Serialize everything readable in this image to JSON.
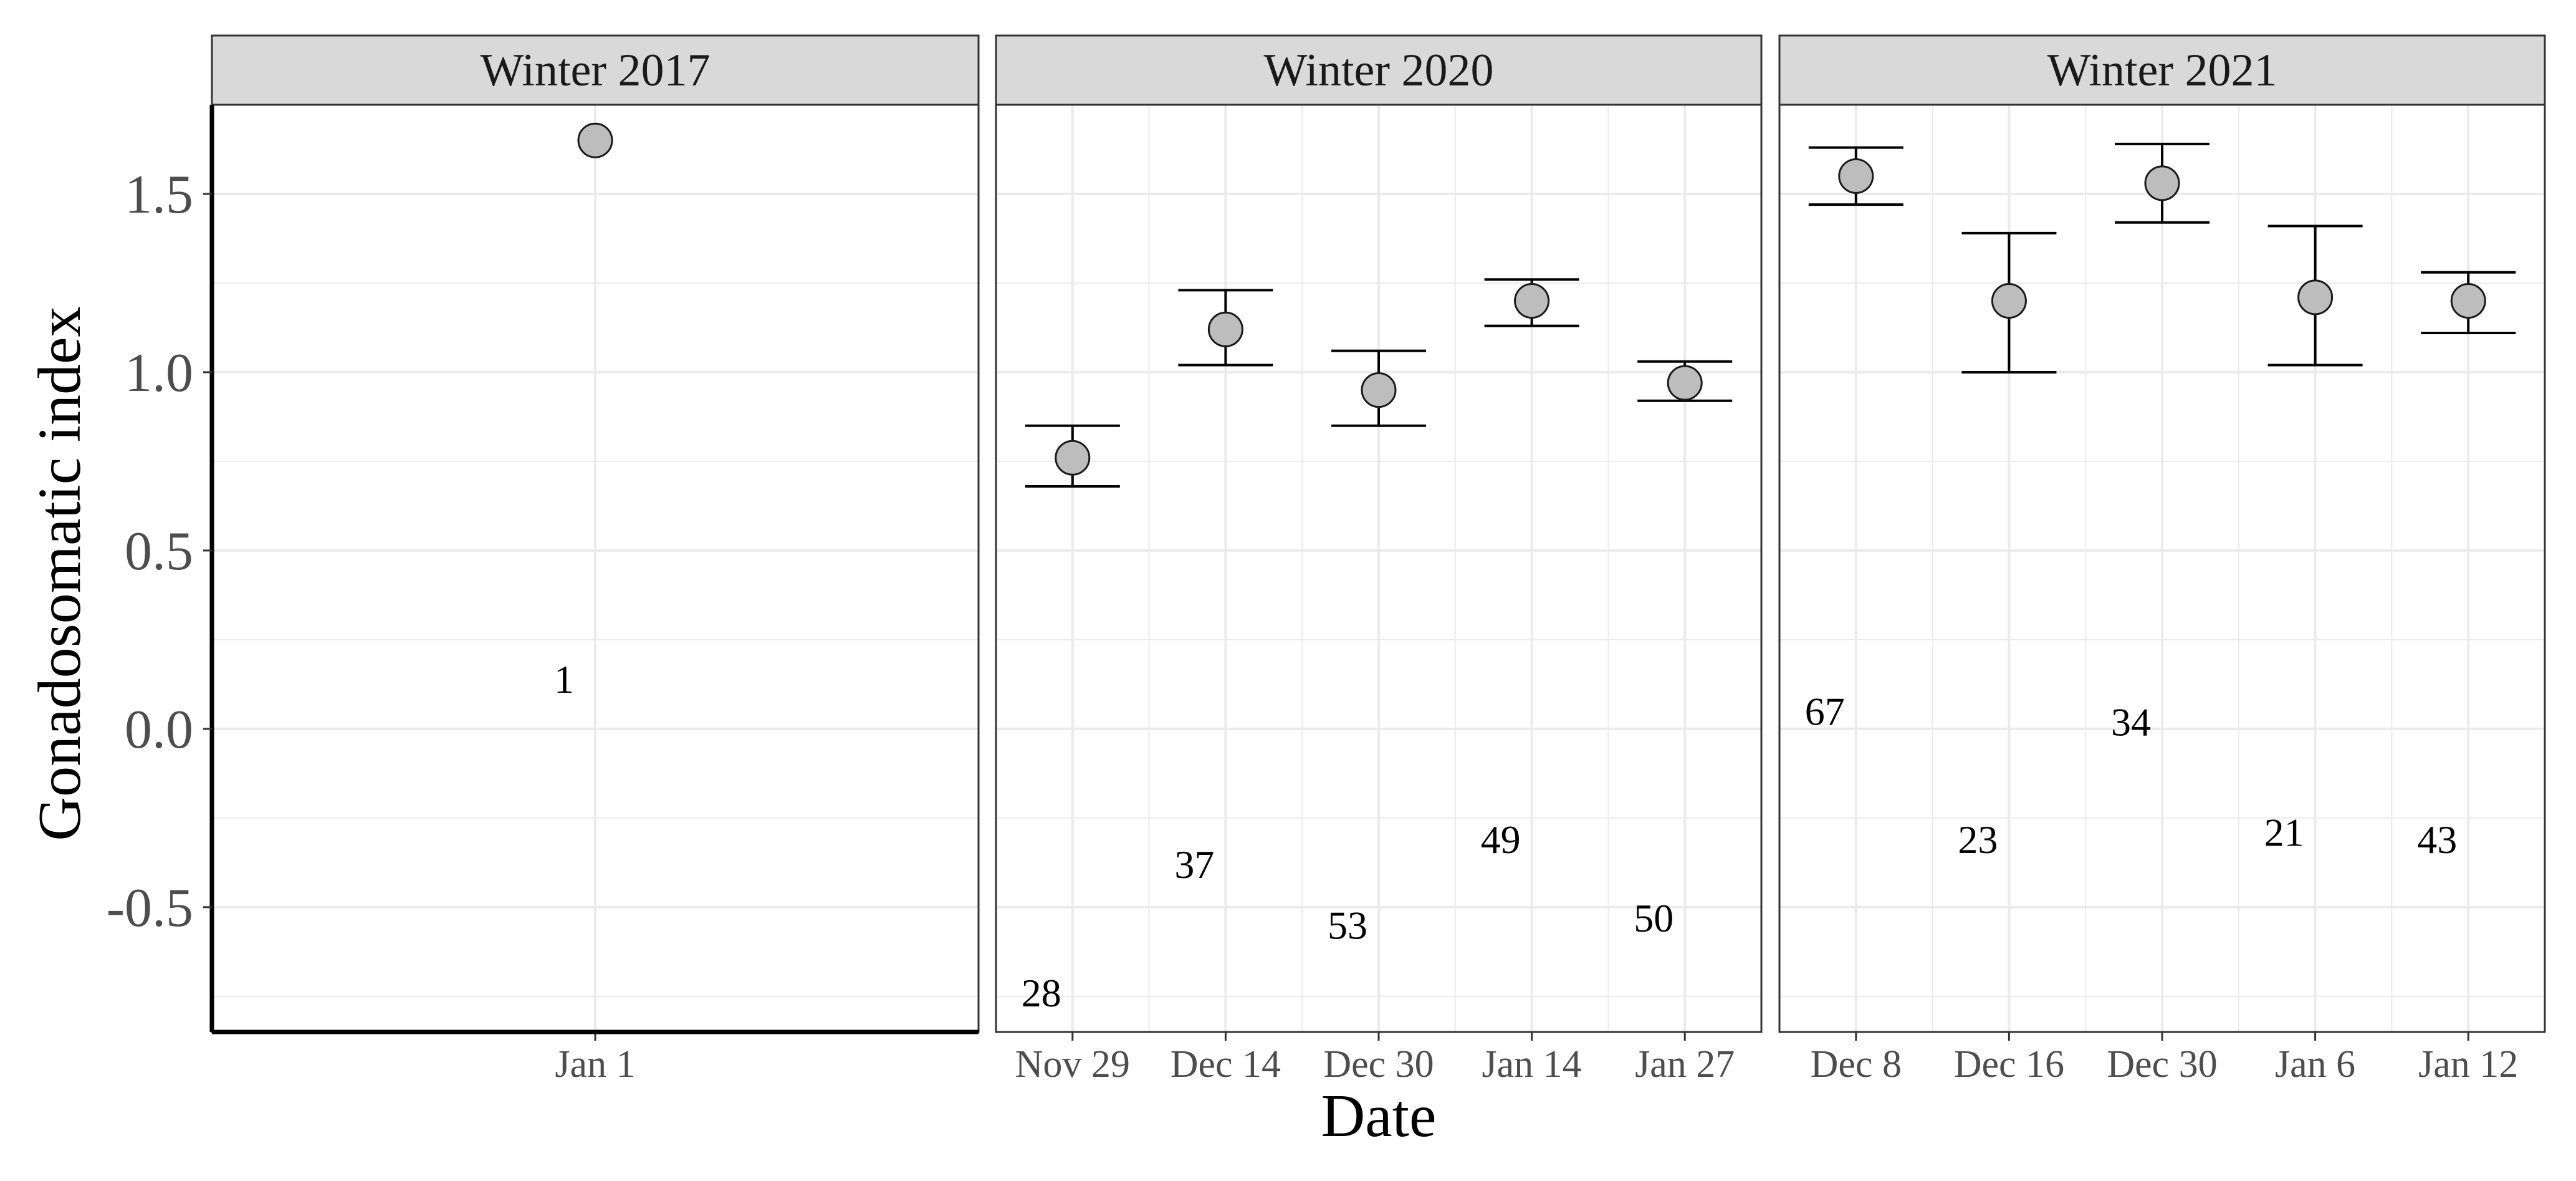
{
  "chart_data": {
    "type": "scatter",
    "xlabel": "Date",
    "ylabel": "Gonadosomatic index",
    "ylim": [
      -0.85,
      1.75
    ],
    "yticks": [
      "-0.5",
      "0.0",
      "0.5",
      "1.0",
      "1.5"
    ],
    "ytick_values": [
      -0.5,
      0.0,
      0.5,
      1.0,
      1.5
    ],
    "grid": true,
    "facets": [
      {
        "title": "Winter 2017",
        "categories": [
          "Jan 1"
        ],
        "points": [
          {
            "x": "Jan 1",
            "y": 1.65,
            "ymin": null,
            "ymax": null,
            "n": "1",
            "n_y": 0.14
          }
        ]
      },
      {
        "title": "Winter 2020",
        "categories": [
          "Nov 29",
          "Dec 14",
          "Dec 30",
          "Jan 14",
          "Jan 27"
        ],
        "points": [
          {
            "x": "Nov 29",
            "y": 0.76,
            "ymin": 0.68,
            "ymax": 0.85,
            "n": "28",
            "n_y": -0.74
          },
          {
            "x": "Dec 14",
            "y": 1.12,
            "ymin": 1.02,
            "ymax": 1.23,
            "n": "37",
            "n_y": -0.38
          },
          {
            "x": "Dec 30",
            "y": 0.95,
            "ymin": 0.85,
            "ymax": 1.06,
            "n": "53",
            "n_y": -0.55
          },
          {
            "x": "Jan 14",
            "y": 1.2,
            "ymin": 1.13,
            "ymax": 1.26,
            "n": "49",
            "n_y": -0.31
          },
          {
            "x": "Jan 27",
            "y": 0.97,
            "ymin": 0.92,
            "ymax": 1.03,
            "n": "50",
            "n_y": -0.53
          }
        ]
      },
      {
        "title": "Winter 2021",
        "categories": [
          "Dec 8",
          "Dec 16",
          "Dec 30",
          "Jan 6",
          "Jan 12"
        ],
        "points": [
          {
            "x": "Dec 8",
            "y": 1.55,
            "ymin": 1.47,
            "ymax": 1.63,
            "n": "67",
            "n_y": 0.05
          },
          {
            "x": "Dec 16",
            "y": 1.2,
            "ymin": 1.0,
            "ymax": 1.39,
            "n": "23",
            "n_y": -0.31
          },
          {
            "x": "Dec 30",
            "y": 1.53,
            "ymin": 1.42,
            "ymax": 1.64,
            "n": "34",
            "n_y": 0.02
          },
          {
            "x": "Jan 6",
            "y": 1.21,
            "ymin": 1.02,
            "ymax": 1.41,
            "n": "21",
            "n_y": -0.29
          },
          {
            "x": "Jan 12",
            "y": 1.2,
            "ymin": 1.11,
            "ymax": 1.28,
            "n": "43",
            "n_y": -0.31
          }
        ]
      }
    ],
    "colors": {
      "point_fill": "#bdbdbd",
      "point_stroke": "#1a1a1a",
      "strip_fill": "#d9d9d9",
      "grid": "#ebebeb",
      "panel_border": "#333333"
    }
  }
}
